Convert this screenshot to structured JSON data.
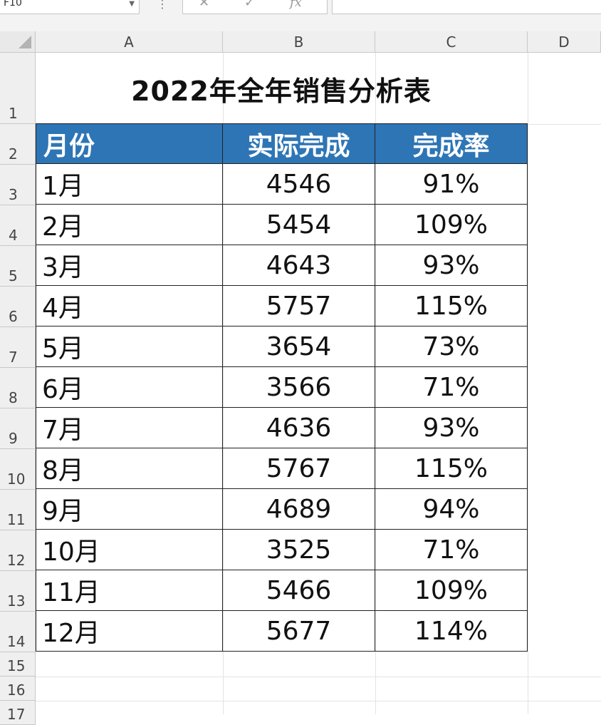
{
  "formula_bar": {
    "name_box": "F10",
    "dots": "⋮",
    "cancel_icon": "✕",
    "enter_icon": "✓",
    "fx_label": "fx",
    "formula": ""
  },
  "columns": [
    "A",
    "B",
    "C",
    "D"
  ],
  "rows": [
    "1",
    "2",
    "3",
    "4",
    "5",
    "6",
    "7",
    "8",
    "9",
    "10",
    "11",
    "12",
    "13",
    "14",
    "15",
    "16",
    "17"
  ],
  "sheet": {
    "title": "2022年全年销售分析表",
    "headers": [
      "月份",
      "实际完成",
      "完成率"
    ],
    "data": [
      [
        "1月",
        "4546",
        "91%"
      ],
      [
        "2月",
        "5454",
        "109%"
      ],
      [
        "3月",
        "4643",
        "93%"
      ],
      [
        "4月",
        "5757",
        "115%"
      ],
      [
        "5月",
        "3654",
        "73%"
      ],
      [
        "6月",
        "3566",
        "71%"
      ],
      [
        "7月",
        "4636",
        "93%"
      ],
      [
        "8月",
        "5767",
        "115%"
      ],
      [
        "9月",
        "4689",
        "94%"
      ],
      [
        "10月",
        "3525",
        "71%"
      ],
      [
        "11月",
        "5466",
        "109%"
      ],
      [
        "12月",
        "5677",
        "114%"
      ]
    ]
  },
  "colors": {
    "header_fill": "#2e75b6",
    "header_text": "#ffffff"
  }
}
